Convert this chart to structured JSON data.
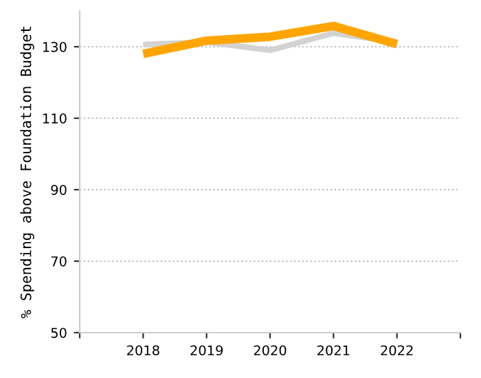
{
  "chart_data": {
    "type": "line",
    "ylabel": "% Spending above Foundation Budget",
    "x": [
      2018,
      2019,
      2020,
      2021,
      2022
    ],
    "series": [
      {
        "color": "#d3d3d3",
        "values": [
          130.6,
          131.3,
          129,
          133.8,
          131.3
        ]
      },
      {
        "color": "#ffa500",
        "values": [
          128,
          131.7,
          132.8,
          135.8,
          130.7
        ]
      }
    ],
    "xlim": [
      2017,
      2023
    ],
    "xticks": [
      {
        "value": 2017,
        "label": null
      },
      2018,
      2019,
      2020,
      2021,
      2022,
      {
        "value": 2023,
        "label": null
      }
    ],
    "ylim": [
      50,
      140
    ],
    "yticks": [
      50,
      70,
      90,
      110,
      130
    ],
    "grid": "y",
    "legend": false,
    "marker": "none",
    "line_style": "solid"
  }
}
